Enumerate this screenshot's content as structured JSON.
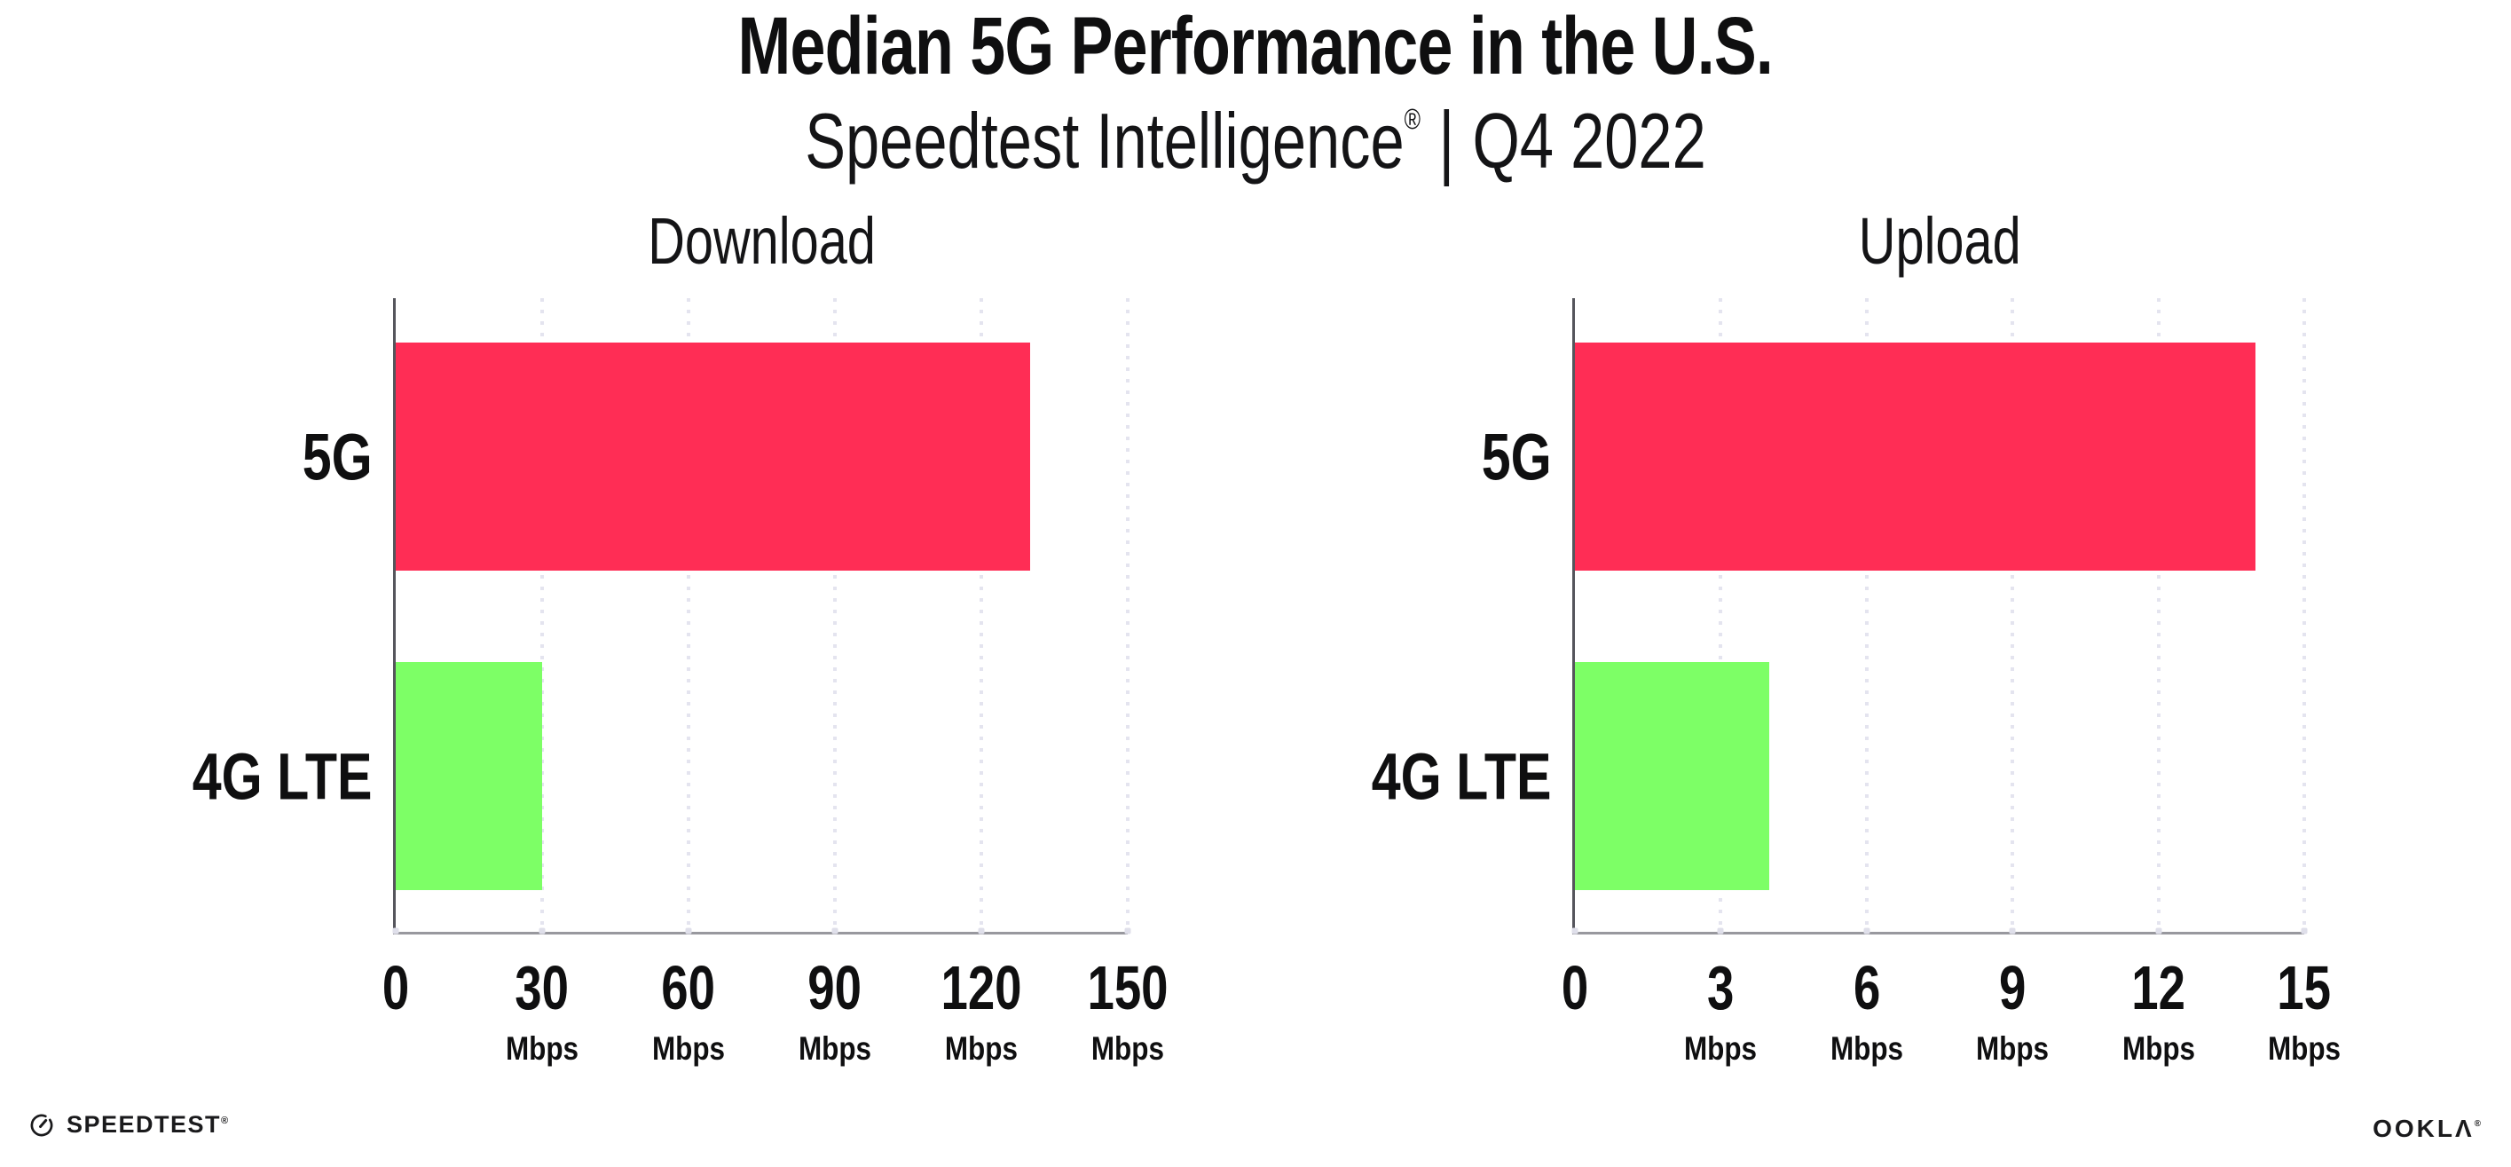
{
  "header": {
    "title": "Median 5G Performance in the U.S.",
    "subtitle_brand": "Speedtest Intelligence",
    "subtitle_reg": "®",
    "subtitle_separator": "|",
    "subtitle_period": "Q4 2022"
  },
  "footer": {
    "speedtest_icon": "speedtest-gauge-icon",
    "speedtest_wordmark": "SPEEDTEST",
    "speedtest_reg": "®",
    "ookla_wordmark": "OOKLΛ",
    "ookla_reg": "®"
  },
  "colors": {
    "bar_5g": "#ff2d55",
    "bar_4g_lte": "#7dff66",
    "gridline_dot": "#e4e4ef",
    "x_axis_line": "#98989e",
    "y_axis_line": "#55555c",
    "tick_dot": "#dfdfea",
    "text": "#0f0f10"
  },
  "chart_data": [
    {
      "type": "bar",
      "orientation": "horizontal",
      "title": "Download",
      "categories": [
        "5G",
        "4G LTE"
      ],
      "values": [
        130,
        30
      ],
      "unit": "Mbps",
      "xlabel": "",
      "ylabel": "",
      "xlim": [
        0,
        150
      ],
      "xticks": [
        0,
        30,
        60,
        90,
        120,
        150
      ],
      "xtick_unit": "Mbps",
      "bar_colors": [
        "#ff2d55",
        "#7dff66"
      ],
      "grid": "vertical-dotted",
      "legend": "none"
    },
    {
      "type": "bar",
      "orientation": "horizontal",
      "title": "Upload",
      "categories": [
        "5G",
        "4G LTE"
      ],
      "values": [
        14,
        4
      ],
      "unit": "Mbps",
      "xlabel": "",
      "ylabel": "",
      "xlim": [
        0,
        15
      ],
      "xticks": [
        0,
        3,
        6,
        9,
        12,
        15
      ],
      "xtick_unit": "Mbps",
      "bar_colors": [
        "#ff2d55",
        "#7dff66"
      ],
      "grid": "vertical-dotted",
      "legend": "none"
    }
  ]
}
